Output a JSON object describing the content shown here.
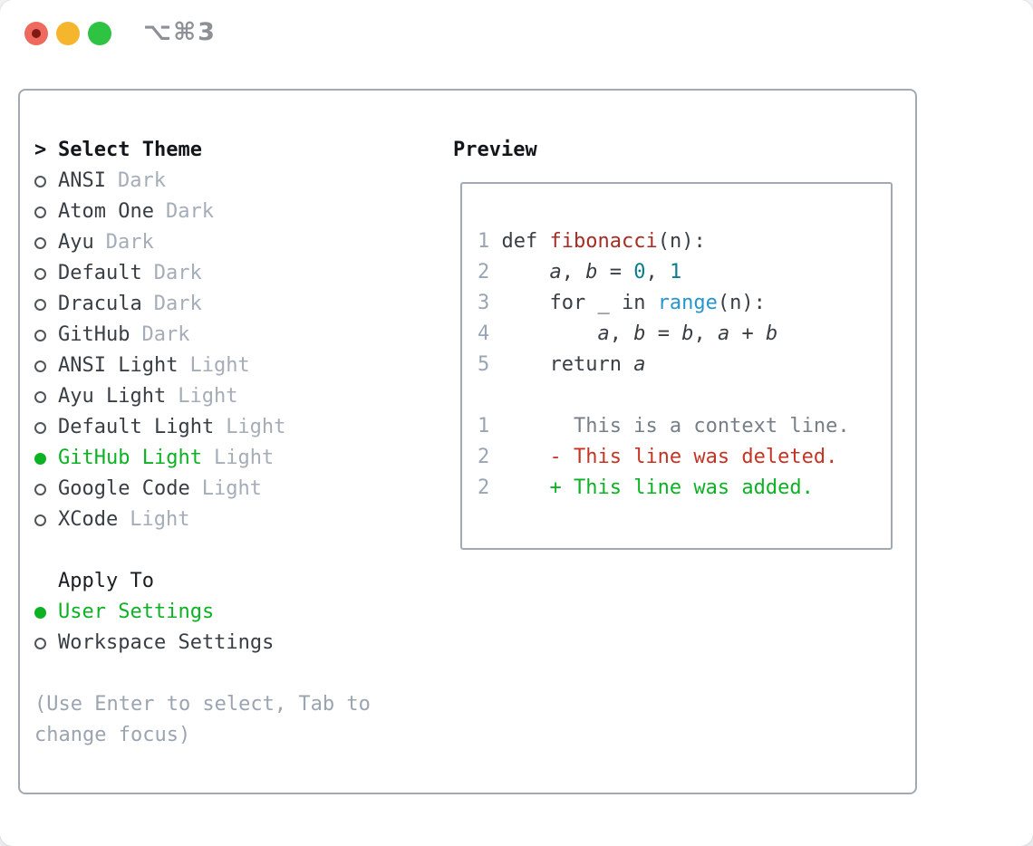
{
  "window": {
    "shortcut": "⌥⌘3"
  },
  "colors": {
    "accent_green": "#0db224",
    "deleted_red": "#c43425",
    "function_red": "#a42d24",
    "number_teal": "#0b7d8c",
    "builtin_blue": "#2596cd",
    "text_dark": "#383e44",
    "text_head": "#121519",
    "subhead": "#1a1d21",
    "tag_gray": "#a4adb8",
    "help_gray": "#9ba4b1",
    "context_gray": "#767e87",
    "line_number_gray": "#9aa5b4",
    "circle_gray": "#51565c",
    "border_gray": "#a2a9b3",
    "titlebar_gray": "#8d9196",
    "traffic_red": "#ee6a5e",
    "traffic_red_dot": "#811a14",
    "traffic_yellow": "#f5b62e",
    "traffic_green": "#2fc343"
  },
  "theme_selector": {
    "prompt": ">",
    "title": "Select Theme",
    "items": [
      {
        "name": "ANSI",
        "tag": "Dark",
        "selected": false
      },
      {
        "name": "Atom One",
        "tag": "Dark",
        "selected": false
      },
      {
        "name": "Ayu",
        "tag": "Dark",
        "selected": false
      },
      {
        "name": "Default",
        "tag": "Dark",
        "selected": false
      },
      {
        "name": "Dracula",
        "tag": "Dark",
        "selected": false
      },
      {
        "name": "GitHub",
        "tag": "Dark",
        "selected": false
      },
      {
        "name": "ANSI Light",
        "tag": "Light",
        "selected": false
      },
      {
        "name": "Ayu Light",
        "tag": "Light",
        "selected": false
      },
      {
        "name": "Default Light",
        "tag": "Light",
        "selected": false
      },
      {
        "name": "GitHub Light",
        "tag": "Light",
        "selected": true
      },
      {
        "name": "Google Code",
        "tag": "Light",
        "selected": false
      },
      {
        "name": "XCode",
        "tag": "Light",
        "selected": false
      }
    ]
  },
  "apply_to": {
    "title": "Apply To",
    "items": [
      {
        "label": "User Settings",
        "selected": true
      },
      {
        "label": "Workspace Settings",
        "selected": false
      }
    ]
  },
  "help": {
    "text": "(Use Enter to select, Tab to change focus)"
  },
  "preview": {
    "title": "Preview",
    "lines": [
      [
        "1 ",
        "def ",
        "fibonacci",
        "(n):"
      ],
      [
        "2 ",
        "    ",
        "a",
        ", ",
        "b",
        " = ",
        "0",
        ", ",
        "1"
      ],
      [
        "3 ",
        "    for _ in ",
        "range",
        "(n):"
      ],
      [
        "4 ",
        "        ",
        "a",
        ", ",
        "b",
        " = ",
        "b",
        ", ",
        "a",
        " + ",
        "b"
      ],
      [
        "5 ",
        "    return ",
        "a"
      ],
      [],
      [
        "1 ",
        "      This is a context line."
      ],
      [
        "2 ",
        "    - This line was deleted."
      ],
      [
        "2 ",
        "    + This line was added."
      ]
    ]
  }
}
